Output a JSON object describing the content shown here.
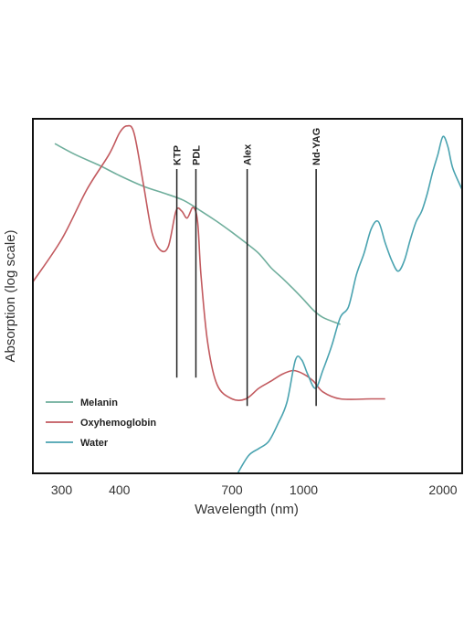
{
  "chart_data": {
    "type": "line",
    "title": "",
    "xlabel": "Wavelength (nm)",
    "ylabel": "Absorption (log scale)",
    "x_scale": "log",
    "y_scale": "log",
    "xlim": [
      260,
      2200
    ],
    "x_ticks": [
      {
        "value": 300,
        "label": "300"
      },
      {
        "value": 400,
        "label": "400"
      },
      {
        "value": 700,
        "label": "700"
      },
      {
        "value": 1000,
        "label": "1000"
      },
      {
        "value": 2000,
        "label": "2000"
      }
    ],
    "grid": false,
    "legend_position": "bottom-left",
    "lasers": [
      {
        "name": "KTP",
        "wavelength": 532
      },
      {
        "name": "PDL",
        "wavelength": 585
      },
      {
        "name": "Alex",
        "wavelength": 755
      },
      {
        "name": "Nd-YAG",
        "wavelength": 1064
      }
    ],
    "series": [
      {
        "name": "Melanin",
        "color": "#6fae9c",
        "points": [
          [
            290,
            0.93
          ],
          [
            320,
            0.9
          ],
          [
            360,
            0.87
          ],
          [
            400,
            0.84
          ],
          [
            450,
            0.81
          ],
          [
            500,
            0.79
          ],
          [
            550,
            0.77
          ],
          [
            600,
            0.74
          ],
          [
            650,
            0.71
          ],
          [
            700,
            0.68
          ],
          [
            750,
            0.65
          ],
          [
            800,
            0.62
          ],
          [
            850,
            0.58
          ],
          [
            900,
            0.55
          ],
          [
            950,
            0.52
          ],
          [
            1000,
            0.49
          ],
          [
            1050,
            0.46
          ],
          [
            1100,
            0.44
          ],
          [
            1200,
            0.42
          ]
        ]
      },
      {
        "name": "Oxyhemoglobin",
        "color": "#c25a5f",
        "points": [
          [
            260,
            0.54
          ],
          [
            300,
            0.66
          ],
          [
            340,
            0.8
          ],
          [
            380,
            0.9
          ],
          [
            400,
            0.96
          ],
          [
            415,
            0.98
          ],
          [
            430,
            0.96
          ],
          [
            450,
            0.82
          ],
          [
            470,
            0.68
          ],
          [
            490,
            0.63
          ],
          [
            510,
            0.64
          ],
          [
            530,
            0.74
          ],
          [
            545,
            0.74
          ],
          [
            560,
            0.72
          ],
          [
            577,
            0.75
          ],
          [
            590,
            0.71
          ],
          [
            600,
            0.56
          ],
          [
            620,
            0.37
          ],
          [
            650,
            0.25
          ],
          [
            700,
            0.21
          ],
          [
            750,
            0.21
          ],
          [
            800,
            0.24
          ],
          [
            850,
            0.26
          ],
          [
            900,
            0.28
          ],
          [
            950,
            0.29
          ],
          [
            1000,
            0.28
          ],
          [
            1050,
            0.26
          ],
          [
            1100,
            0.23
          ],
          [
            1200,
            0.21
          ],
          [
            1400,
            0.21
          ],
          [
            1500,
            0.21
          ]
        ]
      },
      {
        "name": "Water",
        "color": "#4aa3b0",
        "points": [
          [
            720,
            0.0
          ],
          [
            760,
            0.05
          ],
          [
            800,
            0.07
          ],
          [
            840,
            0.09
          ],
          [
            880,
            0.14
          ],
          [
            920,
            0.2
          ],
          [
            960,
            0.32
          ],
          [
            990,
            0.32
          ],
          [
            1020,
            0.28
          ],
          [
            1060,
            0.24
          ],
          [
            1100,
            0.29
          ],
          [
            1150,
            0.36
          ],
          [
            1200,
            0.44
          ],
          [
            1250,
            0.47
          ],
          [
            1300,
            0.56
          ],
          [
            1350,
            0.62
          ],
          [
            1400,
            0.69
          ],
          [
            1450,
            0.71
          ],
          [
            1500,
            0.65
          ],
          [
            1550,
            0.6
          ],
          [
            1600,
            0.57
          ],
          [
            1650,
            0.6
          ],
          [
            1700,
            0.66
          ],
          [
            1750,
            0.71
          ],
          [
            1800,
            0.74
          ],
          [
            1850,
            0.79
          ],
          [
            1900,
            0.85
          ],
          [
            1950,
            0.9
          ],
          [
            2000,
            0.95
          ],
          [
            2050,
            0.92
          ],
          [
            2100,
            0.86
          ],
          [
            2200,
            0.8
          ]
        ]
      }
    ]
  }
}
